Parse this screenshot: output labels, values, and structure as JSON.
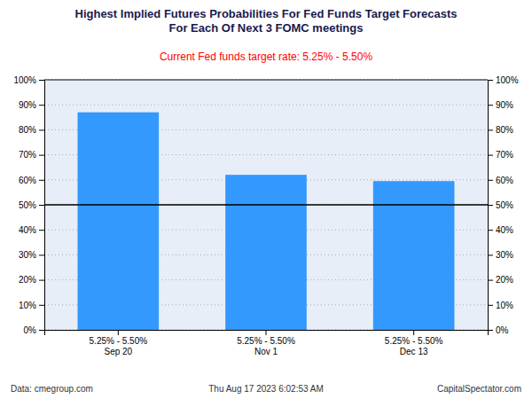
{
  "chart_data": {
    "type": "bar",
    "title": "Highest Implied Futures Probabilities For Fed Funds Target Forecasts\nFor Each Of Next 3 FOMC meetings",
    "subtitle": "Current Fed funds target rate: 5.25% - 5.50%",
    "annotations": [
      "Data: cmegroup.com",
      "Thu Aug 17 2023 6:02:53 AM",
      "CapitalSpectator.com"
    ],
    "categories": [
      "5.25% - 5.50%\nSep 20",
      "5.25% - 5.50%\nNov 1",
      "5.25% - 5.50%\nDec 13"
    ],
    "values": [
      0.87,
      0.62,
      0.595
    ],
    "color": "#3399ff",
    "ylim": [
      0,
      1.0
    ],
    "yticks": [
      {
        "value": 0,
        "label": "0%"
      },
      {
        "value": 0.1,
        "label": "10%"
      },
      {
        "value": 0.2,
        "label": "20%"
      },
      {
        "value": 0.3,
        "label": "30%"
      },
      {
        "value": 0.4,
        "label": "40%"
      },
      {
        "value": 0.5,
        "label": "50%"
      },
      {
        "value": 0.6,
        "label": "60%"
      },
      {
        "value": 0.7,
        "label": "70%"
      },
      {
        "value": 0.8,
        "label": "80%"
      },
      {
        "value": 0.9,
        "label": "90%"
      },
      {
        "value": 1.0,
        "label": "100%"
      }
    ],
    "hline": 0.5,
    "grid": true
  }
}
